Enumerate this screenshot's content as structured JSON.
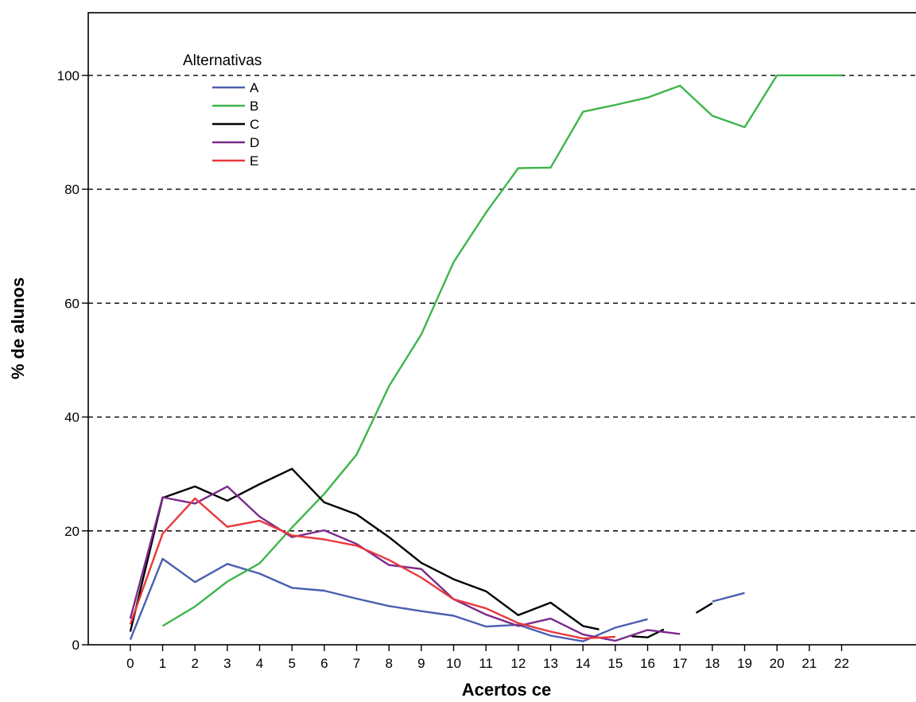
{
  "chart_data": {
    "type": "line",
    "xlabel": "Acertos  ce",
    "ylabel": "% de alunos",
    "x": [
      0,
      1,
      2,
      3,
      4,
      5,
      6,
      7,
      8,
      9,
      10,
      11,
      12,
      13,
      14,
      15,
      16,
      17,
      18,
      19,
      20,
      21,
      22
    ],
    "xlim": [
      -1.3,
      24.3
    ],
    "ylim": [
      0,
      111
    ],
    "yticks": [
      0,
      20,
      40,
      60,
      80,
      100
    ],
    "grid": "horizontal dashed at 20, 40, 60, 80, 100",
    "legend": {
      "title": "Alternativas",
      "placement": "top-left"
    },
    "series": [
      {
        "name": "A",
        "color": "#4a5fb0",
        "segments": [
          [
            [
              0,
              0.9
            ],
            [
              1,
              15.1
            ],
            [
              2,
              11
            ],
            [
              3,
              14.2
            ],
            [
              4,
              12.5
            ],
            [
              5,
              10
            ],
            [
              6,
              9.5
            ],
            [
              7,
              8.1
            ],
            [
              8,
              6.8
            ],
            [
              9,
              5.9
            ],
            [
              10,
              5.1
            ],
            [
              11,
              3.2
            ],
            [
              12,
              3.5
            ],
            [
              13,
              1.6
            ],
            [
              14,
              0.6
            ],
            [
              15,
              3
            ],
            [
              16,
              4.5
            ]
          ],
          [
            [
              18,
              7.6
            ],
            [
              19,
              9.1
            ]
          ]
        ]
      },
      {
        "name": "B",
        "color": "#3fb54a",
        "segments": [
          [
            [
              1,
              3.3
            ],
            [
              2,
              6.7
            ],
            [
              3,
              11.1
            ],
            [
              4,
              14.3
            ],
            [
              5,
              20.6
            ],
            [
              6,
              26.5
            ],
            [
              7,
              33.4
            ],
            [
              8,
              45.4
            ],
            [
              9,
              54.5
            ],
            [
              10,
              67.2
            ],
            [
              11,
              75.9
            ],
            [
              12,
              83.7
            ],
            [
              13,
              83.8
            ],
            [
              14,
              93.6
            ],
            [
              15,
              94.8
            ],
            [
              16,
              96.1
            ],
            [
              17,
              98.2
            ],
            [
              18,
              92.9
            ],
            [
              19,
              90.9
            ],
            [
              20,
              100
            ],
            [
              21,
              100
            ],
            [
              22,
              100
            ]
          ]
        ]
      },
      {
        "name": "C",
        "color": "#000000",
        "segments": [
          [
            [
              0,
              2.3
            ],
            [
              1,
              25.8
            ],
            [
              2,
              27.8
            ],
            [
              3,
              25.3
            ],
            [
              4,
              28.2
            ],
            [
              5,
              30.9
            ],
            [
              6,
              25
            ],
            [
              7,
              22.9
            ],
            [
              8,
              18.9
            ],
            [
              9,
              14.4
            ],
            [
              10,
              11.5
            ],
            [
              11,
              9.4
            ],
            [
              12,
              5.2
            ],
            [
              13,
              7.4
            ],
            [
              14,
              3.3
            ],
            [
              14.5,
              2.7
            ]
          ],
          [
            [
              15.5,
              1.5
            ],
            [
              16,
              1.3
            ],
            [
              16.5,
              2.7
            ]
          ],
          [
            [
              17.5,
              5.6
            ],
            [
              18,
              7.3
            ]
          ]
        ]
      },
      {
        "name": "D",
        "color": "#7b2a8c",
        "segments": [
          [
            [
              0,
              4.6
            ],
            [
              1,
              25.9
            ],
            [
              2,
              24.8
            ],
            [
              3,
              27.8
            ],
            [
              4,
              22.5
            ],
            [
              5,
              18.9
            ],
            [
              6,
              20.1
            ],
            [
              7,
              17.7
            ],
            [
              8,
              14
            ],
            [
              9,
              13.3
            ],
            [
              10,
              8
            ],
            [
              11,
              5.3
            ],
            [
              12,
              3.3
            ],
            [
              13,
              4.6
            ],
            [
              14,
              1.8
            ],
            [
              15,
              0.7
            ],
            [
              16,
              2.6
            ],
            [
              17,
              1.9
            ]
          ]
        ]
      },
      {
        "name": "E",
        "color": "#e8383d",
        "segments": [
          [
            [
              0,
              3.6
            ],
            [
              1,
              19.5
            ],
            [
              2,
              25.7
            ],
            [
              3,
              20.7
            ],
            [
              4,
              21.8
            ],
            [
              5,
              19.2
            ],
            [
              6,
              18.5
            ],
            [
              7,
              17.4
            ],
            [
              8,
              14.9
            ],
            [
              9,
              11.8
            ],
            [
              10,
              8
            ],
            [
              11,
              6.4
            ],
            [
              12,
              3.8
            ],
            [
              13,
              2.3
            ],
            [
              14,
              1.1
            ],
            [
              15,
              1.4
            ]
          ]
        ]
      }
    ]
  }
}
